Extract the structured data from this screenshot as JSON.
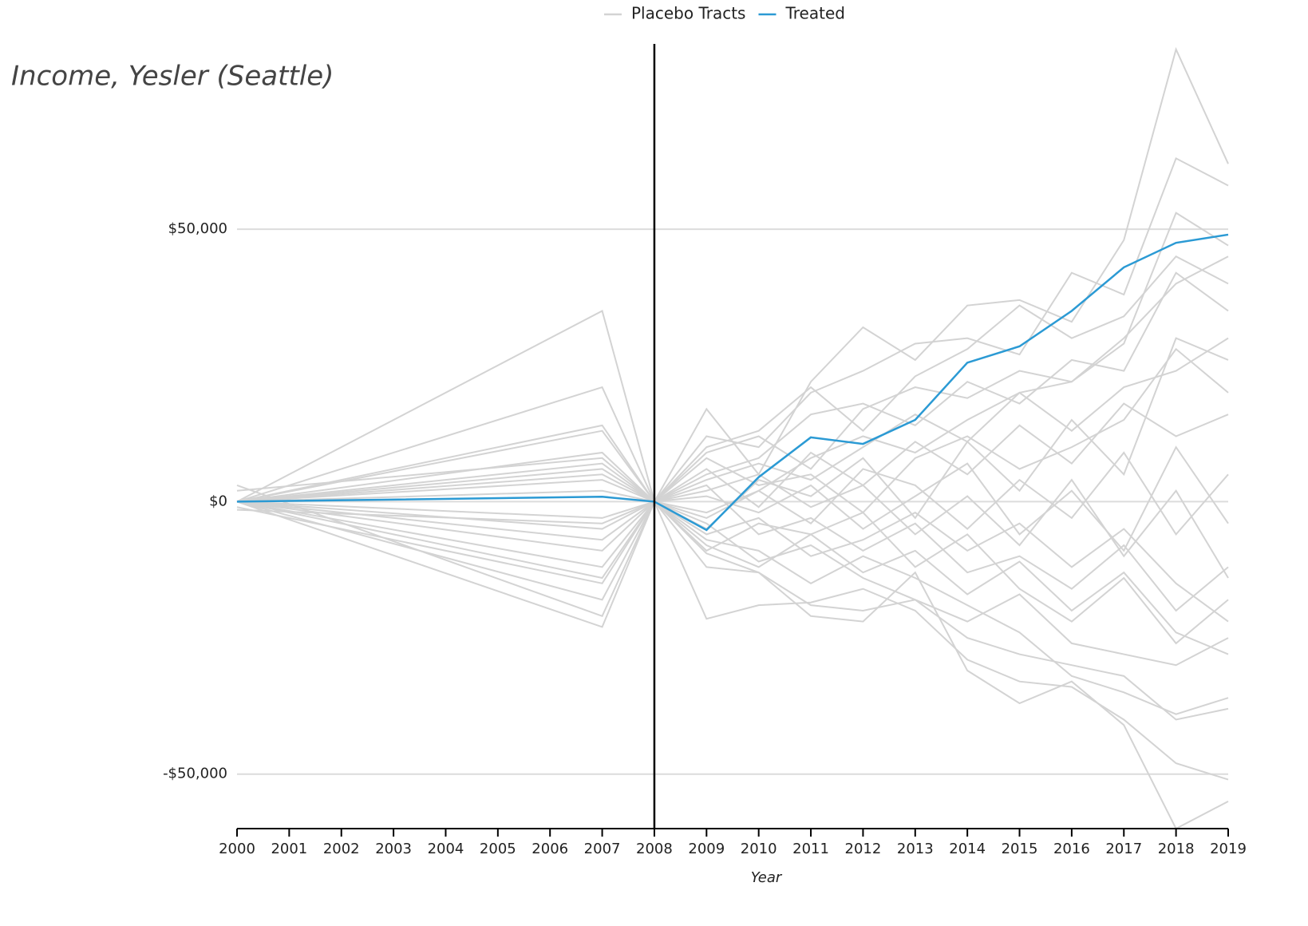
{
  "chart_data": {
    "type": "line",
    "title": "Income, Yesler (Seattle)",
    "x_label": "Year",
    "x": [
      2000,
      2007,
      2008,
      2009,
      2010,
      2011,
      2012,
      2013,
      2014,
      2015,
      2016,
      2017,
      2018,
      2019
    ],
    "xlim": [
      2000,
      2019
    ],
    "xticks": [
      2000,
      2001,
      2002,
      2003,
      2004,
      2005,
      2006,
      2007,
      2008,
      2009,
      2010,
      2011,
      2012,
      2013,
      2014,
      2015,
      2016,
      2017,
      2018,
      2019
    ],
    "ylim": [
      -60000,
      84000
    ],
    "yticks": [
      {
        "value": -50000,
        "label": "-$50,000"
      },
      {
        "value": 0,
        "label": "$0"
      },
      {
        "value": 50000,
        "label": "$50,000"
      }
    ],
    "grid": true,
    "legend": "top",
    "vline": 2008,
    "placebo": {
      "name": "Placebo Tracts",
      "color": "#d3d3d3",
      "lines": [
        [
          0,
          35000,
          0,
          -3000,
          2000,
          8000,
          12000,
          9000,
          15000,
          20000,
          22000,
          30000,
          40000,
          45000
        ],
        [
          0,
          -23000,
          0,
          -21500,
          -19000,
          -18500,
          -16000,
          -20000,
          -29000,
          -33000,
          -34000,
          -40000,
          -48000,
          -51000
        ],
        [
          0,
          21000,
          0,
          17000,
          5000,
          22000,
          32000,
          26000,
          36000,
          37000,
          33000,
          48000,
          83000,
          62000
        ],
        [
          3000,
          -21000,
          0,
          -12000,
          -13000,
          -21000,
          -22000,
          -13000,
          -31000,
          -37000,
          -33000,
          -41000,
          -60000,
          -55000
        ],
        [
          0,
          14000,
          0,
          12000,
          10000,
          20000,
          24000,
          29000,
          30000,
          27000,
          42000,
          38000,
          63000,
          58000
        ],
        [
          -1000,
          -15000,
          0,
          -7000,
          -9000,
          -15000,
          -10000,
          -14000,
          -19000,
          -24000,
          -32000,
          -35000,
          -39000,
          -36000
        ],
        [
          0,
          9000,
          0,
          8000,
          3000,
          5000,
          -2000,
          8000,
          12000,
          6000,
          10000,
          15000,
          28000,
          20000
        ],
        [
          0,
          -9000,
          0,
          -4000,
          -11000,
          -8000,
          -14000,
          -18000,
          -22000,
          -17000,
          -26000,
          -28000,
          -30000,
          -25000
        ],
        [
          0,
          7000,
          0,
          5000,
          8000,
          16000,
          18000,
          14000,
          22000,
          18000,
          26000,
          24000,
          42000,
          35000
        ],
        [
          0,
          -5000,
          0,
          3000,
          -6000,
          -3000,
          -9000,
          -4000,
          -13000,
          -10000,
          -16000,
          -8000,
          -20000,
          -12000
        ],
        [
          0,
          6000,
          0,
          10000,
          13000,
          21000,
          13000,
          23000,
          28000,
          36000,
          30000,
          34000,
          45000,
          40000
        ],
        [
          0,
          -12000,
          0,
          -9000,
          -4000,
          -6000,
          -2000,
          -12000,
          -6000,
          -16000,
          -22000,
          -14000,
          -26000,
          -18000
        ],
        [
          0,
          4000,
          0,
          -2000,
          2000,
          -4000,
          6000,
          3000,
          -5000,
          4000,
          -3000,
          9000,
          -6000,
          5000
        ],
        [
          0,
          -3000,
          0,
          1000,
          -2000,
          3000,
          -5000,
          1000,
          7000,
          -6000,
          2000,
          -9000,
          10000,
          -4000
        ],
        [
          0,
          2000,
          0,
          4000,
          7000,
          4000,
          10000,
          16000,
          11000,
          20000,
          13000,
          21000,
          24000,
          30000
        ],
        [
          0,
          -7000,
          0,
          -6000,
          -3000,
          -10000,
          -7000,
          -2000,
          -9000,
          -4000,
          -12000,
          -5000,
          -15000,
          -22000
        ],
        [
          2000,
          8000,
          0,
          6000,
          -1000,
          9000,
          3000,
          11000,
          5000,
          14000,
          7000,
          18000,
          12000,
          16000
        ],
        [
          0,
          -14000,
          0,
          -8000,
          -12000,
          -6000,
          -13000,
          -9000,
          -17000,
          -11000,
          -20000,
          -13000,
          -24000,
          -28000
        ],
        [
          0,
          5000,
          0,
          -5000,
          4000,
          1000,
          8000,
          -3000,
          11000,
          2000,
          15000,
          5000,
          30000,
          26000
        ],
        [
          -1500,
          -4000,
          0,
          2000,
          5000,
          -1000,
          3000,
          -6000,
          1000,
          -8000,
          4000,
          -10000,
          2000,
          -14000
        ],
        [
          0,
          13000,
          0,
          9000,
          12000,
          6000,
          17000,
          21000,
          19000,
          24000,
          22000,
          29000,
          53000,
          47000
        ],
        [
          0,
          -18000,
          0,
          -9500,
          -13000,
          -19000,
          -20000,
          -18000,
          -25000,
          -28000,
          -30000,
          -32000,
          -40000,
          -38000
        ]
      ]
    },
    "series": [
      {
        "name": "Treated",
        "color": "#2b9ad4",
        "values": [
          0,
          900,
          0,
          -5200,
          4500,
          11800,
          10600,
          15000,
          25500,
          28500,
          35000,
          43000,
          47500,
          49000
        ]
      }
    ]
  }
}
